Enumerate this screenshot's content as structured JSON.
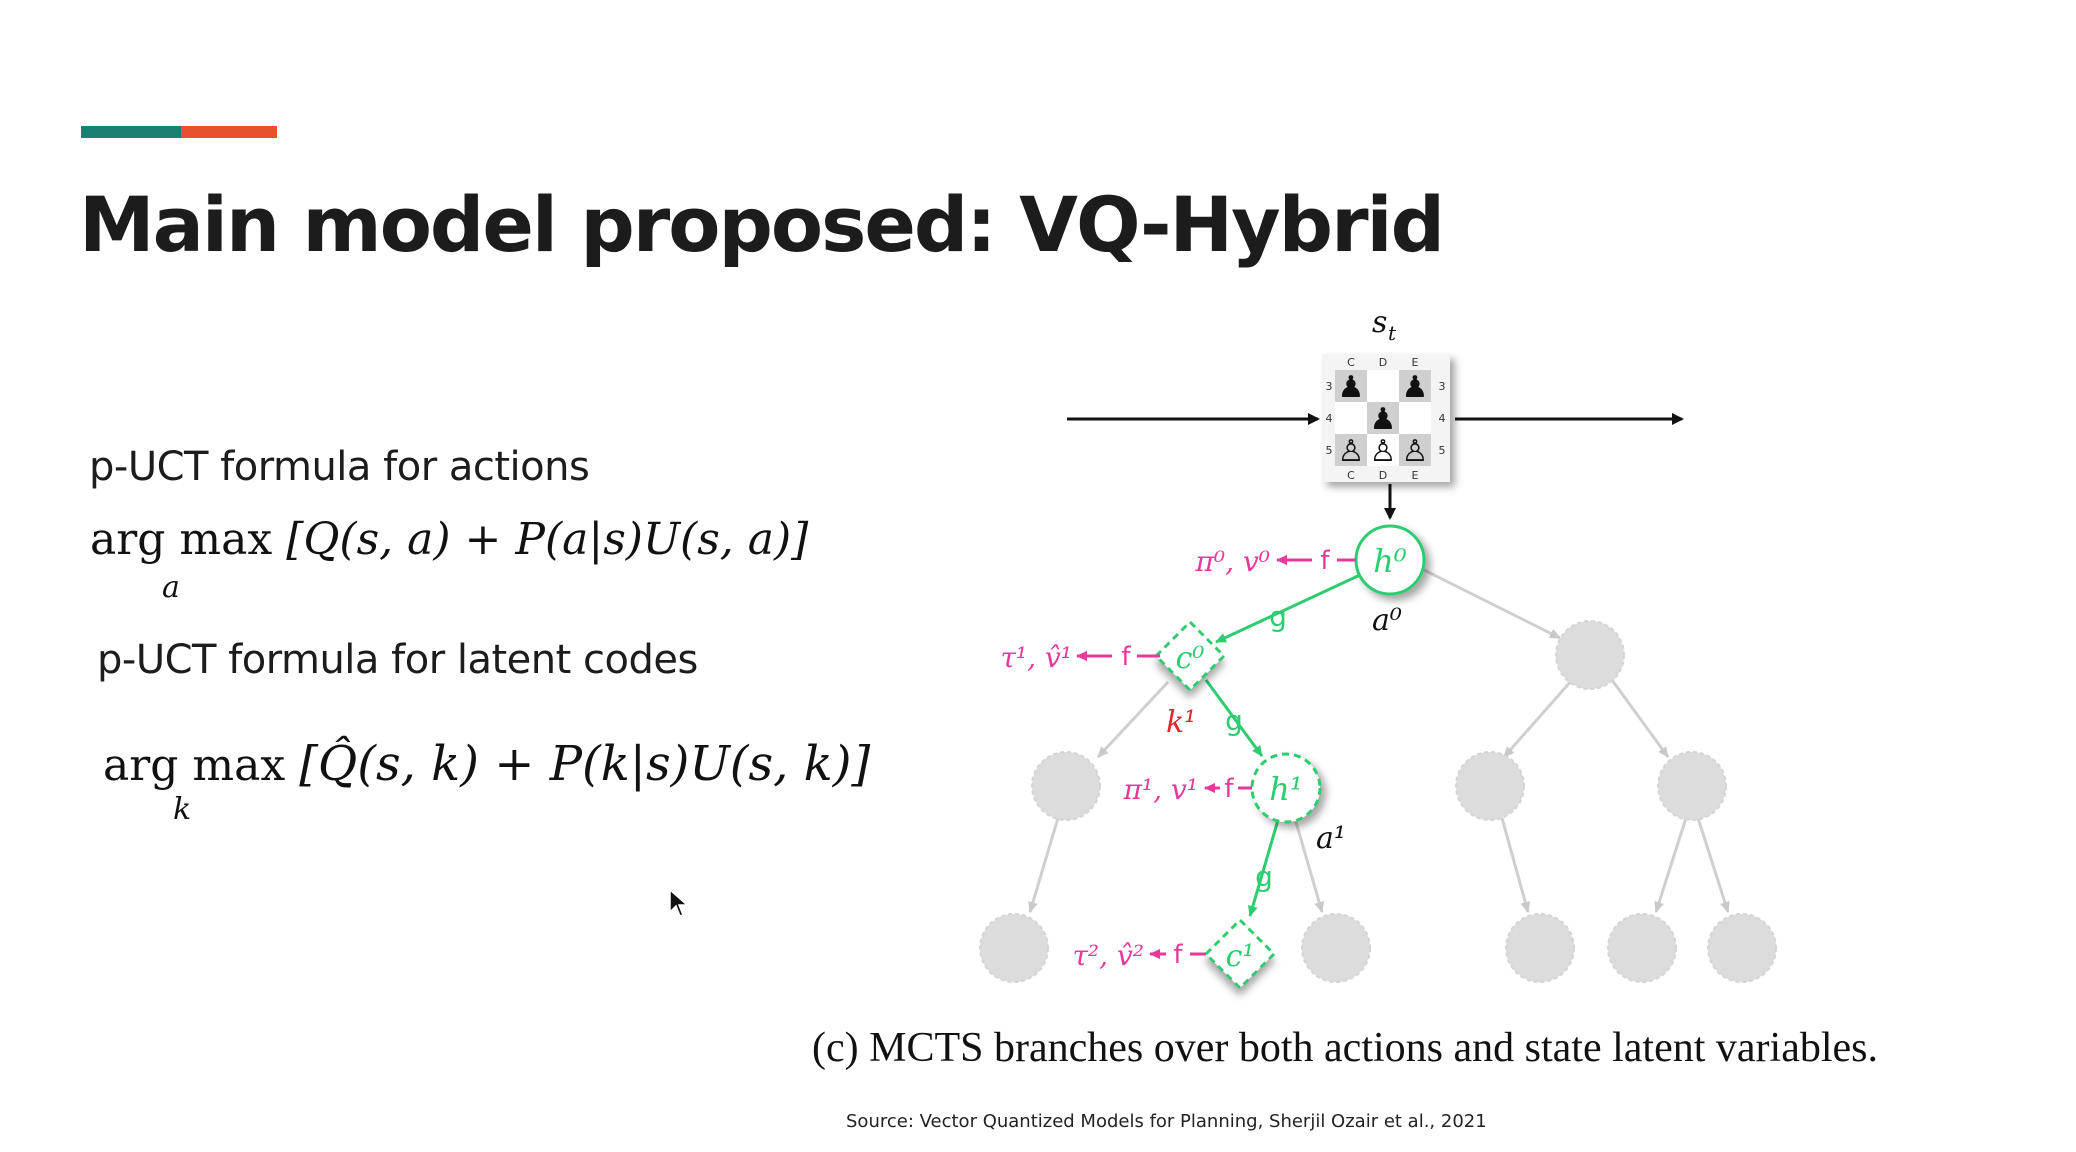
{
  "slide": {
    "title": "Main model proposed: VQ-Hybrid",
    "accent_colors": [
      "#1b7f74",
      "#e9512e"
    ]
  },
  "left_panel": {
    "actions_label": "p-UCT formula for actions",
    "actions_formula": {
      "operator": "arg max",
      "subscript": "a",
      "expression": "[Q(s, a) + P(a|s)U(s, a)]"
    },
    "latent_label": "p-UCT formula for latent codes",
    "latent_formula": {
      "operator": "arg max",
      "subscript": "k",
      "expression": "[Q̂(s, k) + P(k|s)U(s, k)]"
    }
  },
  "figure": {
    "state_label": "s",
    "state_sub": "t",
    "board": {
      "top_files": [
        "C",
        "D",
        "E"
      ],
      "bottom_files": [
        "C",
        "D",
        "E"
      ],
      "ranks": [
        "3",
        "4",
        "5"
      ],
      "black_pieces": [
        "♟",
        "♟",
        "♟"
      ],
      "white_pieces": [
        "♙",
        "♙",
        "♙"
      ]
    },
    "nodes": {
      "h0": "h⁰",
      "c0": "c⁰",
      "h1": "h¹",
      "c1": "c¹"
    },
    "edge_labels": {
      "f": "f",
      "g": "g",
      "a0": "a⁰",
      "a1": "a¹",
      "k1": "k¹"
    },
    "predictions": {
      "pi0_v0": "π⁰, v⁰",
      "tau1_v1": "τ¹, v̂¹",
      "pi1_v1": "π¹, v¹",
      "tau2_v2": "τ², v̂²"
    },
    "colors": {
      "green": "#2ecc71",
      "pink": "#e8399b",
      "red": "#e5242b",
      "gray_node": "#dcdcdc"
    },
    "caption": "(c) MCTS branches over both actions and state latent variables."
  },
  "source": "Source: Vector Quantized Models for Planning, Sherjil Ozair et al., 2021"
}
